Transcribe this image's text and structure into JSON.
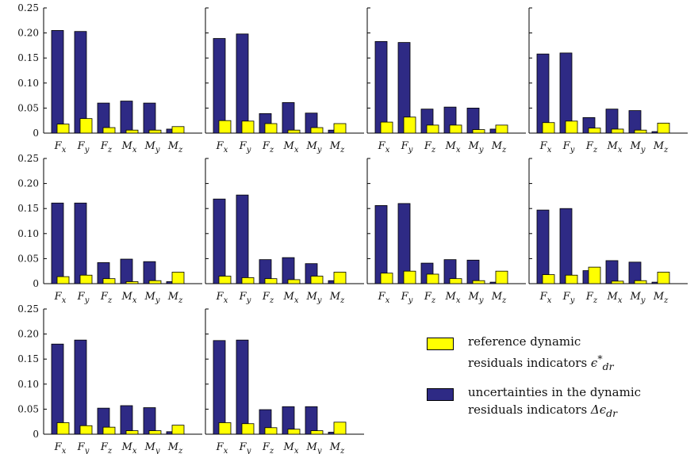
{
  "chart_data": {
    "type": "bar",
    "categories": [
      "F_x",
      "F_y",
      "F_z",
      "M_x",
      "M_y",
      "M_z"
    ],
    "ylim": [
      0,
      0.25
    ],
    "yticks": [
      "0",
      "0.05",
      "0.10",
      "0.15",
      "0.20",
      "0.25"
    ],
    "colors": {
      "uncertainty": "#2e2a85",
      "reference": "#ffff00"
    },
    "legend": {
      "position": "bottom-right",
      "entries": [
        {
          "key": "reference",
          "line1": "reference dynamic",
          "line2": "residuals indicators ",
          "symbol": "ϵ",
          "sup": "*",
          "sub": "dr"
        },
        {
          "key": "uncertainty",
          "line1": "uncertainties in the dynamic",
          "line2": "residuals indicators ",
          "symbol": "Δϵ",
          "sup": "",
          "sub": "dr"
        }
      ]
    },
    "panels": [
      {
        "uncertainty": [
          0.205,
          0.203,
          0.06,
          0.064,
          0.06,
          0.008
        ],
        "reference": [
          0.018,
          0.029,
          0.011,
          0.006,
          0.006,
          0.013
        ]
      },
      {
        "uncertainty": [
          0.189,
          0.198,
          0.039,
          0.061,
          0.04,
          0.006
        ],
        "reference": [
          0.025,
          0.024,
          0.019,
          0.006,
          0.011,
          0.019
        ]
      },
      {
        "uncertainty": [
          0.183,
          0.181,
          0.048,
          0.052,
          0.05,
          0.008
        ],
        "reference": [
          0.022,
          0.032,
          0.016,
          0.016,
          0.007,
          0.016
        ]
      },
      {
        "uncertainty": [
          0.158,
          0.16,
          0.031,
          0.048,
          0.045,
          0.003
        ],
        "reference": [
          0.021,
          0.024,
          0.01,
          0.008,
          0.006,
          0.02
        ]
      },
      {
        "uncertainty": [
          0.161,
          0.161,
          0.042,
          0.049,
          0.044,
          0.004
        ],
        "reference": [
          0.014,
          0.017,
          0.01,
          0.004,
          0.006,
          0.023
        ]
      },
      {
        "uncertainty": [
          0.169,
          0.177,
          0.048,
          0.052,
          0.04,
          0.006
        ],
        "reference": [
          0.015,
          0.012,
          0.01,
          0.008,
          0.015,
          0.023
        ]
      },
      {
        "uncertainty": [
          0.156,
          0.16,
          0.041,
          0.048,
          0.047,
          0.003
        ],
        "reference": [
          0.021,
          0.025,
          0.019,
          0.01,
          0.006,
          0.025
        ]
      },
      {
        "uncertainty": [
          0.147,
          0.15,
          0.026,
          0.046,
          0.043,
          0.003
        ],
        "reference": [
          0.018,
          0.017,
          0.033,
          0.005,
          0.006,
          0.023
        ]
      },
      {
        "uncertainty": [
          0.18,
          0.188,
          0.052,
          0.057,
          0.053,
          0.005
        ],
        "reference": [
          0.023,
          0.017,
          0.014,
          0.007,
          0.007,
          0.018
        ]
      },
      {
        "uncertainty": [
          0.187,
          0.188,
          0.049,
          0.055,
          0.055,
          0.004
        ],
        "reference": [
          0.023,
          0.021,
          0.013,
          0.01,
          0.007,
          0.024
        ]
      }
    ]
  }
}
